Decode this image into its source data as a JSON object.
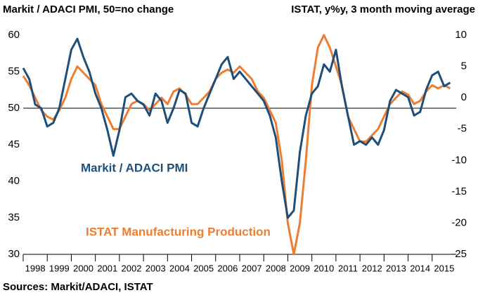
{
  "chart_data": {
    "type": "line",
    "title": "Markit / ADACI PMI, 50=no change",
    "y2_title": "ISTAT, y%y, 3 month moving average",
    "source": "Sources: Markit/ADACI, ISTAT",
    "annotations": [
      "Markit / ADACI PMI",
      "ISTAT Manufacturing Production"
    ],
    "x": [
      1998,
      1998.25,
      1998.5,
      1998.75,
      1999,
      1999.25,
      1999.5,
      1999.75,
      2000,
      2000.25,
      2000.5,
      2000.75,
      2001,
      2001.25,
      2001.5,
      2001.75,
      2002,
      2002.25,
      2002.5,
      2002.75,
      2003,
      2003.25,
      2003.5,
      2003.75,
      2004,
      2004.25,
      2004.5,
      2004.75,
      2005,
      2005.25,
      2005.5,
      2005.75,
      2006,
      2006.25,
      2006.5,
      2006.75,
      2007,
      2007.25,
      2007.5,
      2007.75,
      2008,
      2008.25,
      2008.5,
      2008.75,
      2009,
      2009.25,
      2009.5,
      2009.75,
      2010,
      2010.25,
      2010.5,
      2010.75,
      2011,
      2011.25,
      2011.5,
      2011.75,
      2012,
      2012.25,
      2012.5,
      2012.75,
      2013,
      2013.25,
      2013.5,
      2013.75,
      2014,
      2014.25,
      2014.5,
      2014.75,
      2015,
      2015.25,
      2015.5,
      2015.75
    ],
    "series": [
      {
        "name": "Markit / ADACI PMI",
        "color": "#1f4e79",
        "axis": "y",
        "values": [
          55.5,
          54,
          50.5,
          50,
          47.5,
          48,
          50,
          54,
          58,
          59.5,
          57,
          55,
          52,
          50,
          47,
          43.5,
          47,
          51.5,
          52,
          51,
          50.5,
          49,
          52,
          51,
          48,
          50,
          52.5,
          52,
          48,
          47.5,
          50,
          52,
          54,
          56,
          57,
          54,
          55,
          54,
          53,
          52,
          51,
          49,
          46,
          40,
          35,
          36,
          44,
          49,
          52,
          53,
          56,
          55,
          58,
          53,
          49,
          45,
          45.5,
          45,
          46,
          45,
          47,
          51,
          52.5,
          52,
          51.5,
          49,
          49.5,
          52.5,
          54.5,
          55,
          53,
          53.5
        ]
      },
      {
        "name": "ISTAT Manufacturing Production",
        "color": "#ed7d31",
        "axis": "y2",
        "values": [
          3.5,
          2,
          0,
          -2,
          -3,
          -3.5,
          -2,
          0,
          3,
          5,
          4,
          3,
          2,
          -1,
          -3,
          -5,
          -5,
          -3,
          -1,
          -0.5,
          -1,
          -2,
          -1,
          0,
          -1,
          1,
          1.5,
          0.5,
          -1,
          -1,
          0,
          1,
          3,
          4,
          4.5,
          4,
          5,
          4,
          3,
          1,
          0,
          -2,
          -4,
          -10,
          -20,
          -25,
          -20,
          -10,
          2,
          8,
          10,
          8,
          5,
          2,
          -3,
          -5,
          -7,
          -7,
          -6,
          -5,
          -3,
          -1,
          0,
          1,
          0.5,
          -1,
          -0.5,
          1,
          2,
          1.5,
          2,
          1.5
        ]
      }
    ],
    "xlim": [
      1998,
      2016
    ],
    "xticks": [
      1998,
      1999,
      2000,
      2001,
      2002,
      2003,
      2004,
      2005,
      2006,
      2007,
      2008,
      2009,
      2010,
      2011,
      2012,
      2013,
      2014,
      2015
    ],
    "ylim": [
      30,
      60
    ],
    "yticks": [
      30,
      35,
      40,
      45,
      50,
      55,
      60
    ],
    "y2lim": [
      -25,
      10
    ],
    "y2ticks": [
      -25,
      -20,
      -15,
      -10,
      -5,
      0,
      5,
      10
    ],
    "reference_line": 50
  }
}
